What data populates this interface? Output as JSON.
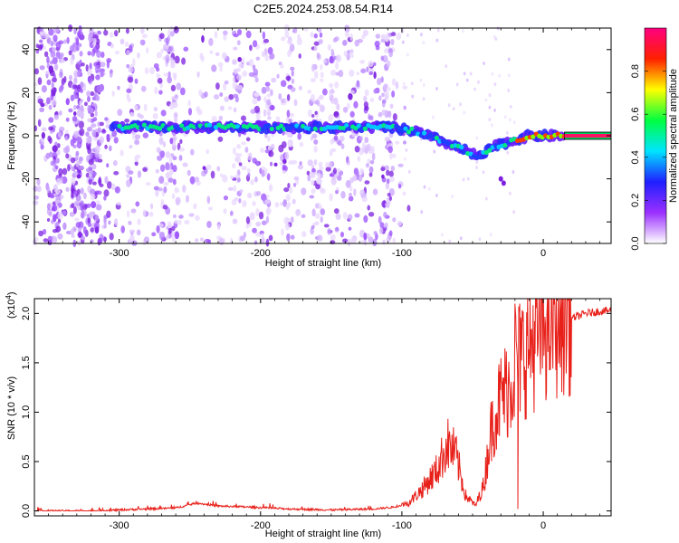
{
  "title": "C2E5.2024.253.08.54.R14",
  "chart_data": [
    {
      "type": "heatmap",
      "xlabel": "Height of straight line (km)",
      "ylabel": "Frequency (Hz)",
      "xlim": [
        -360,
        48
      ],
      "ylim": [
        -50,
        50
      ],
      "x_ticks": [
        -300,
        -200,
        -100,
        0
      ],
      "x_tick_labels": [
        "-300",
        "-200",
        "-100",
        "0"
      ],
      "y_ticks": [
        -40,
        -20,
        0,
        20,
        40
      ],
      "y_tick_labels": [
        "-40",
        "-20",
        "0",
        "20",
        "40"
      ],
      "ridge": {
        "x": [
          -305,
          -250,
          -200,
          -150,
          -110,
          -90,
          -70,
          -55,
          -45,
          -35,
          -20,
          -10,
          0,
          10,
          48
        ],
        "freq": [
          4,
          4,
          4,
          4,
          4,
          2,
          -3,
          -7,
          -10,
          -5,
          -2,
          0,
          0,
          0,
          0
        ]
      },
      "colorbar": {
        "label": "Normalized spectral amplitude",
        "range": [
          0,
          1
        ],
        "ticks": [
          0.0,
          0.2,
          0.4,
          0.6,
          0.8
        ],
        "tick_labels": [
          "0.0",
          "0.2",
          "0.4",
          "0.6",
          "0.8"
        ],
        "colors": [
          "#ffffff",
          "#9b30ff",
          "#1f1fff",
          "#00e5ff",
          "#00ff40",
          "#ffff00",
          "#ff2000",
          "#ff0080"
        ]
      }
    },
    {
      "type": "line",
      "xlabel": "Height of straight line (km)",
      "ylabel": "SNR (10 * v/v)",
      "y_multiplier_label": "(x10",
      "y_multiplier_exp": "4",
      "xlim": [
        -360,
        48
      ],
      "ylim": [
        -0.05,
        2.15
      ],
      "x_ticks": [
        -300,
        -200,
        -100,
        0
      ],
      "x_tick_labels": [
        "-300",
        "-200",
        "-100",
        "0"
      ],
      "y_ticks": [
        0.0,
        0.5,
        1.0,
        1.5,
        2.0
      ],
      "y_tick_labels": [
        "0.0",
        "0.5",
        "1.0",
        "1.5",
        "2.0"
      ],
      "line_color": "#e8201a",
      "series": [
        {
          "x": [
            -360,
            -320,
            -280,
            -260,
            -245,
            -230,
            -210,
            -180,
            -150,
            -120,
            -105,
            -95,
            -85,
            -75,
            -68,
            -62,
            -55,
            -48,
            -42,
            -38,
            -35,
            -30,
            -25,
            -22,
            -20,
            -18,
            -15,
            -10,
            -5,
            0,
            10,
            20,
            30,
            40,
            48
          ],
          "y": [
            0.0,
            0.0,
            0.02,
            0.03,
            0.08,
            0.05,
            0.04,
            0.02,
            0.01,
            0.02,
            0.04,
            0.08,
            0.22,
            0.4,
            0.65,
            0.55,
            0.15,
            0.05,
            0.25,
            0.7,
            0.9,
            1.1,
            1.2,
            1.3,
            1.4,
            1.45,
            1.5,
            1.6,
            1.7,
            1.8,
            1.9,
            1.95,
            2.0,
            2.02,
            2.03
          ]
        }
      ],
      "spikes": [
        {
          "x": -20,
          "y": 2.1
        },
        {
          "x": -18,
          "y": 0.02
        }
      ]
    }
  ]
}
